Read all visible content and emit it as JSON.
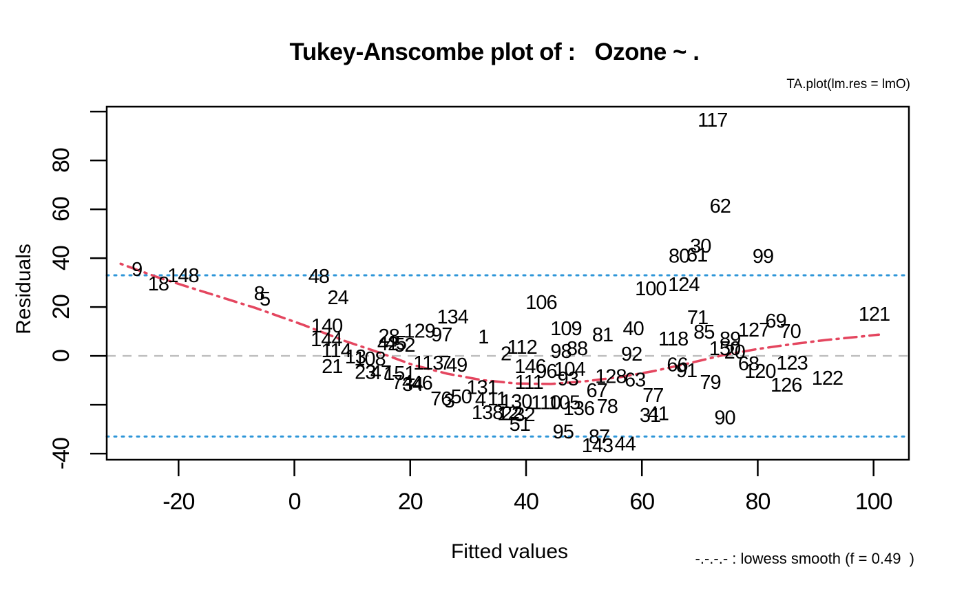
{
  "title": "Tukey-Anscombe plot of :   Ozone ~ .",
  "subtitle": "TA.plot(lm.res = lmO)",
  "xlabel": "Fitted values",
  "ylabel": "Residuals",
  "legend": "-.-.-.- : lowess smooth (f = 0.49  )",
  "colors": {
    "lowess": "#e4465f",
    "band": "#2e96d8",
    "zero_line": "#bfbfbf",
    "frame": "#000000",
    "labels": "#000000"
  },
  "chart_data": {
    "type": "scatter",
    "title": "Tukey-Anscombe plot of :   Ozone ~ .",
    "xlabel": "Fitted values",
    "ylabel": "Residuals",
    "xlim": [
      -32.4,
      106.1
    ],
    "ylim": [
      -42.5,
      102.0
    ],
    "x_ticks": [
      -20,
      0,
      20,
      40,
      60,
      80,
      100
    ],
    "y_ticks": [
      -40,
      0,
      20,
      40,
      60,
      80
    ],
    "y_ticks_unlabeled": [
      -20,
      100
    ],
    "zero_line": 0,
    "band_lines": [
      33,
      -33
    ],
    "grid": false,
    "legend_position": "bottom-right",
    "points": [
      {
        "l": "9",
        "x": -27.2,
        "y": 35.2
      },
      {
        "l": "18",
        "x": -23.5,
        "y": 29.3
      },
      {
        "l": "148",
        "x": -19.2,
        "y": 32.7
      },
      {
        "l": "8",
        "x": -6.1,
        "y": 25.4
      },
      {
        "l": "5",
        "x": -5.1,
        "y": 23.1
      },
      {
        "l": "48",
        "x": 4.2,
        "y": 32.4
      },
      {
        "l": "24",
        "x": 7.5,
        "y": 23.7
      },
      {
        "l": "140",
        "x": 5.6,
        "y": 12.1
      },
      {
        "l": "144",
        "x": 5.5,
        "y": 6.5
      },
      {
        "l": "114",
        "x": 7.2,
        "y": 2.0
      },
      {
        "l": "21",
        "x": 6.5,
        "y": -4.5
      },
      {
        "l": "13",
        "x": 10.5,
        "y": -0.6
      },
      {
        "l": "108",
        "x": 13.0,
        "y": -1.4
      },
      {
        "l": "23",
        "x": 12.2,
        "y": -6.8
      },
      {
        "l": "47",
        "x": 14.9,
        "y": -7.0
      },
      {
        "l": "151",
        "x": 18.1,
        "y": -7.3
      },
      {
        "l": "28",
        "x": 16.3,
        "y": 7.9
      },
      {
        "l": "42",
        "x": 16.1,
        "y": 4.8
      },
      {
        "l": "45",
        "x": 17.5,
        "y": 5.1
      },
      {
        "l": "52",
        "x": 19.0,
        "y": 4.2
      },
      {
        "l": "129",
        "x": 21.6,
        "y": 10.1
      },
      {
        "l": "97",
        "x": 25.4,
        "y": 8.5
      },
      {
        "l": "134",
        "x": 27.3,
        "y": 15.8
      },
      {
        "l": "74",
        "x": 18.6,
        "y": -11.0
      },
      {
        "l": "34",
        "x": 20.4,
        "y": -11.8
      },
      {
        "l": "46",
        "x": 22.0,
        "y": -11.3
      },
      {
        "l": "113",
        "x": 23.1,
        "y": -3.1
      },
      {
        "l": "7",
        "x": 26.1,
        "y": -3.1
      },
      {
        "l": "49",
        "x": 28.0,
        "y": -3.9
      },
      {
        "l": "76",
        "x": 25.3,
        "y": -17.7
      },
      {
        "l": "3",
        "x": 26.7,
        "y": -18.6
      },
      {
        "l": "50",
        "x": 28.8,
        "y": -16.9
      },
      {
        "l": "4",
        "x": 32.1,
        "y": -18.0
      },
      {
        "l": "131",
        "x": 32.4,
        "y": -13.0
      },
      {
        "l": "1",
        "x": 32.6,
        "y": 7.6
      },
      {
        "l": "11",
        "x": 35.0,
        "y": -17.7
      },
      {
        "l": "130",
        "x": 38.3,
        "y": -18.9
      },
      {
        "l": "12",
        "x": 36.8,
        "y": -23.7
      },
      {
        "l": "138",
        "x": 33.3,
        "y": -23.4
      },
      {
        "l": "22",
        "x": 37.5,
        "y": -23.7
      },
      {
        "l": "32",
        "x": 39.7,
        "y": -24.2
      },
      {
        "l": "51",
        "x": 38.9,
        "y": -28.2
      },
      {
        "l": "2",
        "x": 36.5,
        "y": 0.8
      },
      {
        "l": "112",
        "x": 39.3,
        "y": 3.4
      },
      {
        "l": "146",
        "x": 40.7,
        "y": -4.5
      },
      {
        "l": "96",
        "x": 43.5,
        "y": -6.5
      },
      {
        "l": "104",
        "x": 47.5,
        "y": -5.6
      },
      {
        "l": "111",
        "x": 40.5,
        "y": -11.0
      },
      {
        "l": "93",
        "x": 47.2,
        "y": -9.6
      },
      {
        "l": "128",
        "x": 54.6,
        "y": -8.5
      },
      {
        "l": "63",
        "x": 58.8,
        "y": -9.9
      },
      {
        "l": "88",
        "x": 48.8,
        "y": 2.8
      },
      {
        "l": "98",
        "x": 46.0,
        "y": 1.7
      },
      {
        "l": "106",
        "x": 42.6,
        "y": 21.7
      },
      {
        "l": "109",
        "x": 46.9,
        "y": 11.0
      },
      {
        "l": "81",
        "x": 53.2,
        "y": 8.5
      },
      {
        "l": "40",
        "x": 58.5,
        "y": 11.0
      },
      {
        "l": "92",
        "x": 58.2,
        "y": 0.6
      },
      {
        "l": "118",
        "x": 65.4,
        "y": 6.8
      },
      {
        "l": "66",
        "x": 66.1,
        "y": -3.7
      },
      {
        "l": "91",
        "x": 67.7,
        "y": -6.2
      },
      {
        "l": "67",
        "x": 52.2,
        "y": -14.4
      },
      {
        "l": "77",
        "x": 61.9,
        "y": -16.3
      },
      {
        "l": "78",
        "x": 54.0,
        "y": -20.8
      },
      {
        "l": "136",
        "x": 49.1,
        "y": -21.7
      },
      {
        "l": "105",
        "x": 46.6,
        "y": -19.2
      },
      {
        "l": "110",
        "x": 43.4,
        "y": -19.2
      },
      {
        "l": "95",
        "x": 46.4,
        "y": -31.3
      },
      {
        "l": "87",
        "x": 52.6,
        "y": -33.2
      },
      {
        "l": "143",
        "x": 52.3,
        "y": -36.9
      },
      {
        "l": "44",
        "x": 57.1,
        "y": -36.1
      },
      {
        "l": "31",
        "x": 61.4,
        "y": -24.5
      },
      {
        "l": "41",
        "x": 62.8,
        "y": -23.7
      },
      {
        "l": "90",
        "x": 74.3,
        "y": -25.4
      },
      {
        "l": "79",
        "x": 71.8,
        "y": -11.0
      },
      {
        "l": "71",
        "x": 69.6,
        "y": 15.5
      },
      {
        "l": "85",
        "x": 70.7,
        "y": 9.6
      },
      {
        "l": "89",
        "x": 75.2,
        "y": 6.8
      },
      {
        "l": "127",
        "x": 79.3,
        "y": 10.4
      },
      {
        "l": "69",
        "x": 83.1,
        "y": 14.1
      },
      {
        "l": "70",
        "x": 85.6,
        "y": 9.9
      },
      {
        "l": "150",
        "x": 74.3,
        "y": 2.8
      },
      {
        "l": "20",
        "x": 76.0,
        "y": 1.4
      },
      {
        "l": "68",
        "x": 78.4,
        "y": -3.4
      },
      {
        "l": "120",
        "x": 80.4,
        "y": -6.5
      },
      {
        "l": "123",
        "x": 85.9,
        "y": -3.1
      },
      {
        "l": "126",
        "x": 84.9,
        "y": -12.1
      },
      {
        "l": "122",
        "x": 92.0,
        "y": -9.3
      },
      {
        "l": "121",
        "x": 100.1,
        "y": 16.9
      },
      {
        "l": "117",
        "x": 72.2,
        "y": 96.3
      },
      {
        "l": "62",
        "x": 73.5,
        "y": 61.1
      },
      {
        "l": "30",
        "x": 70.1,
        "y": 44.8
      },
      {
        "l": "80",
        "x": 66.4,
        "y": 40.8
      },
      {
        "l": "61",
        "x": 69.5,
        "y": 41.1
      },
      {
        "l": "99",
        "x": 80.9,
        "y": 40.6
      },
      {
        "l": "100",
        "x": 61.5,
        "y": 27.3
      },
      {
        "l": "124",
        "x": 67.2,
        "y": 29.0
      }
    ],
    "lowess": [
      [
        -30.0,
        37.7
      ],
      [
        -23.5,
        32.1
      ],
      [
        -15.2,
        25.9
      ],
      [
        -6.8,
        19.7
      ],
      [
        1.5,
        12.7
      ],
      [
        8.6,
        6.2
      ],
      [
        14.6,
        1.4
      ],
      [
        20.5,
        -3.7
      ],
      [
        26.4,
        -7.3
      ],
      [
        32.4,
        -9.9
      ],
      [
        38.3,
        -11.3
      ],
      [
        44.3,
        -11.5
      ],
      [
        50.2,
        -10.4
      ],
      [
        56.2,
        -8.7
      ],
      [
        62.1,
        -6.2
      ],
      [
        68.0,
        -3.1
      ],
      [
        74.0,
        0.3
      ],
      [
        79.9,
        2.8
      ],
      [
        85.9,
        4.8
      ],
      [
        91.8,
        6.5
      ],
      [
        97.7,
        7.9
      ],
      [
        100.9,
        8.7
      ]
    ]
  }
}
